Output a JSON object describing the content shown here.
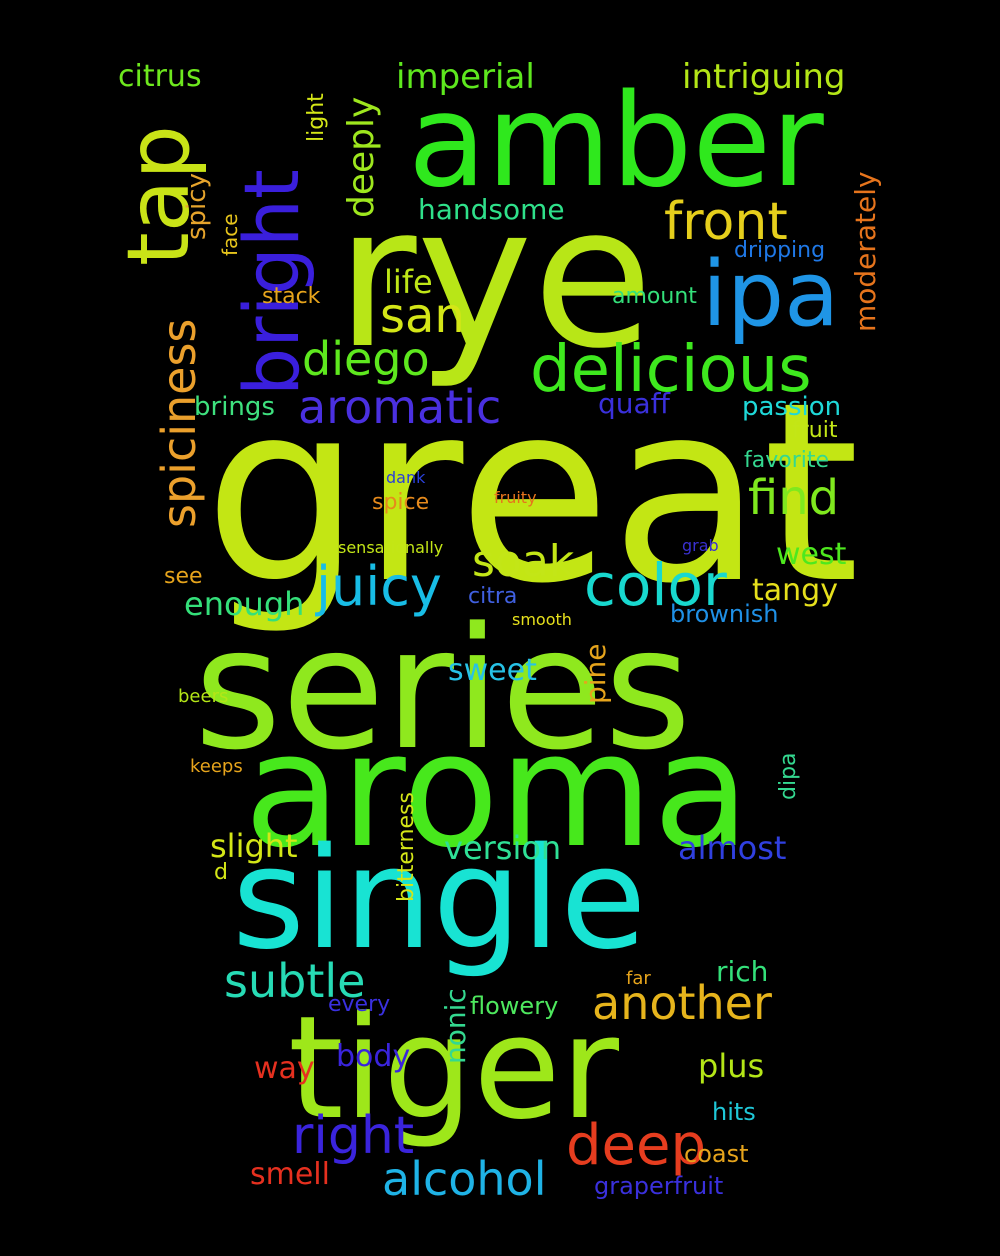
{
  "words": [
    {
      "text": "great",
      "color": "#c3e614"
    },
    {
      "text": "rye",
      "color": "#b8e617"
    },
    {
      "text": "series",
      "color": "#8fe81e"
    },
    {
      "text": "aroma",
      "color": "#47e81c"
    },
    {
      "text": "single",
      "color": "#18e3d3"
    },
    {
      "text": "tiger",
      "color": "#9ee71a"
    },
    {
      "text": "amber",
      "color": "#2fe81d"
    },
    {
      "text": "bright",
      "color": "#3a1fdc"
    },
    {
      "text": "tap",
      "color": "#c9e317"
    },
    {
      "text": "ipa",
      "color": "#1f95e6"
    },
    {
      "text": "delicious",
      "color": "#3ee81e"
    },
    {
      "text": "color",
      "color": "#18d8cf"
    },
    {
      "text": "spiciness",
      "color": "#eba02c"
    },
    {
      "text": "front",
      "color": "#e6cf1c"
    },
    {
      "text": "juicy",
      "color": "#18bde6"
    },
    {
      "text": "aromatic",
      "color": "#4a30e0"
    },
    {
      "text": "diego",
      "color": "#5ee81e"
    },
    {
      "text": "find",
      "color": "#7fe81e"
    },
    {
      "text": "soak",
      "color": "#c3e617"
    },
    {
      "text": "san",
      "color": "#d4e617"
    },
    {
      "text": "deep",
      "color": "#e63d1f"
    },
    {
      "text": "right",
      "color": "#3a24dc"
    },
    {
      "text": "another",
      "color": "#e6b41c"
    },
    {
      "text": "subtle",
      "color": "#27dbb5"
    },
    {
      "text": "alcohol",
      "color": "#1fb3e6"
    },
    {
      "text": "deeply",
      "color": "#9ee71e"
    },
    {
      "text": "imperial",
      "color": "#5ee81e"
    },
    {
      "text": "intriguing",
      "color": "#b4e617"
    },
    {
      "text": "citrus",
      "color": "#6ee81e"
    },
    {
      "text": "handsome",
      "color": "#2fe08a"
    },
    {
      "text": "life",
      "color": "#bfe617"
    },
    {
      "text": "moderately",
      "color": "#e6741c"
    },
    {
      "text": "enough",
      "color": "#34e07a"
    },
    {
      "text": "west",
      "color": "#4ee81e"
    },
    {
      "text": "tangy",
      "color": "#e6e01c"
    },
    {
      "text": "slight",
      "color": "#d4e617"
    },
    {
      "text": "version",
      "color": "#2fe096"
    },
    {
      "text": "almost",
      "color": "#3040e0"
    },
    {
      "text": "sweet",
      "color": "#27c2e6"
    },
    {
      "text": "pine",
      "color": "#e6a41c"
    },
    {
      "text": "passion",
      "color": "#1fd8d8"
    },
    {
      "text": "quaff",
      "color": "#3a30dc"
    },
    {
      "text": "brings",
      "color": "#3ee07e"
    },
    {
      "text": "spicy",
      "color": "#e6a42c"
    },
    {
      "text": "light",
      "color": "#d4e617"
    },
    {
      "text": "face",
      "color": "#e6c41c"
    },
    {
      "text": "dripping",
      "color": "#1f78e6"
    },
    {
      "text": "stack",
      "color": "#e6a41c"
    },
    {
      "text": "amount",
      "color": "#34e07a"
    },
    {
      "text": "fruit",
      "color": "#c3e617"
    },
    {
      "text": "favorite",
      "color": "#34d890"
    },
    {
      "text": "spice",
      "color": "#e68a1c"
    },
    {
      "text": "dank",
      "color": "#2a40d8"
    },
    {
      "text": "fruity",
      "color": "#e6741c"
    },
    {
      "text": "sensationally",
      "color": "#c3e617"
    },
    {
      "text": "grab",
      "color": "#3a30d0"
    },
    {
      "text": "see",
      "color": "#e6a41c"
    },
    {
      "text": "citra",
      "color": "#4060e0"
    },
    {
      "text": "smooth",
      "color": "#e6e01c"
    },
    {
      "text": "brownish",
      "color": "#1f90e6"
    },
    {
      "text": "beers",
      "color": "#b4e617"
    },
    {
      "text": "keeps",
      "color": "#e6a41c"
    },
    {
      "text": "dipa",
      "color": "#34d890"
    },
    {
      "text": "bitterness",
      "color": "#d4e617"
    },
    {
      "text": "d",
      "color": "#d4e617"
    },
    {
      "text": "rich",
      "color": "#34e07a"
    },
    {
      "text": "nonic",
      "color": "#34d890"
    },
    {
      "text": "every",
      "color": "#3a30e0"
    },
    {
      "text": "flowery",
      "color": "#4ee85e"
    },
    {
      "text": "far",
      "color": "#e6a41c"
    },
    {
      "text": "way",
      "color": "#e6301f"
    },
    {
      "text": "body",
      "color": "#3a24dc"
    },
    {
      "text": "plus",
      "color": "#b4e617"
    },
    {
      "text": "hits",
      "color": "#1fc8d8"
    },
    {
      "text": "coast",
      "color": "#e6a41c"
    },
    {
      "text": "smell",
      "color": "#e6301f"
    },
    {
      "text": "graperfruit",
      "color": "#3a30dc"
    }
  ]
}
